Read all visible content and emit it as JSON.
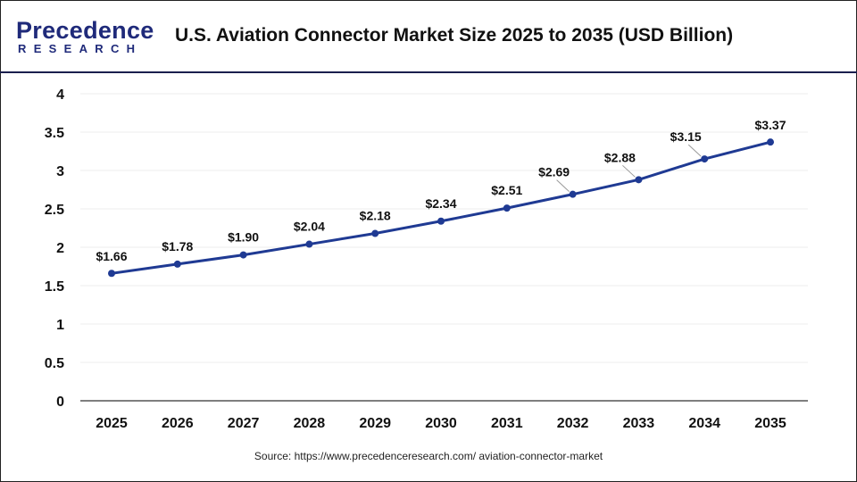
{
  "header": {
    "logo_line1": "Precedence",
    "logo_line2": "RESEARCH",
    "title": "U.S. Aviation Connector Market Size 2025 to 2035 (USD Billion)"
  },
  "source": "Source: https://www.precedenceresearch.com/ aviation-connector-market",
  "chart_data": {
    "type": "line",
    "title": "U.S. Aviation Connector Market Size 2025 to 2035 (USD Billion)",
    "categories": [
      "2025",
      "2026",
      "2027",
      "2028",
      "2029",
      "2030",
      "2031",
      "2032",
      "2033",
      "2034",
      "2035"
    ],
    "values": [
      1.66,
      1.78,
      1.9,
      2.04,
      2.18,
      2.34,
      2.51,
      2.69,
      2.88,
      3.15,
      3.37
    ],
    "data_labels": [
      "$1.66",
      "$1.78",
      "$1.90",
      "$2.04",
      "$2.18",
      "$2.34",
      "$2.51",
      "$2.69",
      "$2.88",
      "$3.15",
      "$3.37"
    ],
    "yticks": [
      "0",
      "0.5",
      "1",
      "1.5",
      "2",
      "2.5",
      "3",
      "3.5",
      "4"
    ],
    "ylim": [
      0,
      4
    ],
    "grid": true,
    "line_color": "#1f3a93"
  }
}
